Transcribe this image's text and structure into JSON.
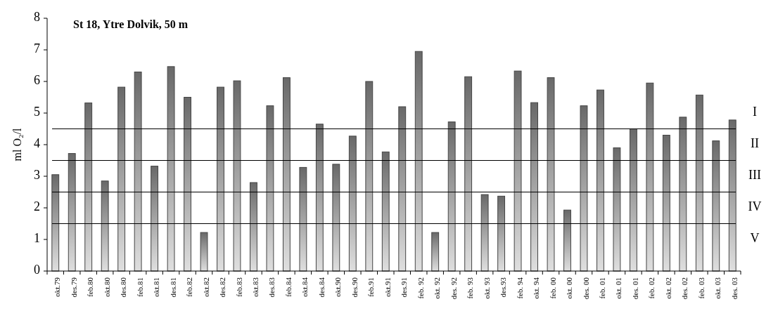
{
  "chart_data": {
    "type": "bar",
    "title": "St 18, Ytre Dolvik, 50 m",
    "ylabel": "ml O₂/l",
    "categories": [
      "okt.79",
      "des.79",
      "feb.80",
      "okt.80",
      "des.80",
      "feb.81",
      "okt.81",
      "des.81",
      "feb.82",
      "okt.82",
      "des.82",
      "feb.83",
      "okt.83",
      "des.83",
      "feb.84",
      "okt.84",
      "des.84",
      "okt.90",
      "des.90",
      "feb.91",
      "okt.91",
      "des.91",
      "feb. 92",
      "okt. 92",
      "des. 92",
      "feb. 93",
      "okt. 93",
      "des.93",
      "feb. 94",
      "okt. 94",
      "feb. 00",
      "okt. 00",
      "des. 00",
      "feb. 01",
      "okt. 01",
      "des. 01",
      "feb. 02",
      "okt. 02",
      "des. 02",
      "feb. 03",
      "okt. 03",
      "des. 03"
    ],
    "values": [
      3.05,
      3.72,
      5.32,
      2.85,
      5.82,
      6.3,
      3.32,
      6.47,
      5.5,
      1.22,
      5.82,
      6.02,
      2.8,
      5.23,
      6.12,
      3.28,
      4.65,
      3.38,
      4.27,
      6.0,
      3.77,
      5.2,
      6.95,
      1.22,
      4.72,
      6.15,
      2.42,
      2.37,
      6.33,
      5.33,
      6.12,
      1.93,
      5.23,
      5.73,
      3.9,
      4.5,
      5.95,
      4.3,
      4.87,
      5.57,
      4.12,
      4.78
    ],
    "color": "#444444",
    "ylim": [
      0,
      8
    ],
    "yticks": [
      0,
      1,
      2,
      3,
      4,
      5,
      6,
      7,
      8
    ],
    "ref_lines": [
      {
        "axis": "y",
        "value": 4.5,
        "color": "#000000"
      },
      {
        "axis": "y",
        "value": 3.5,
        "color": "#000000"
      },
      {
        "axis": "y",
        "value": 2.5,
        "color": "#000000"
      },
      {
        "axis": "y",
        "value": 1.5,
        "color": "#000000"
      }
    ],
    "annotations": [
      "I",
      "II",
      "III",
      "IV",
      "V"
    ]
  }
}
